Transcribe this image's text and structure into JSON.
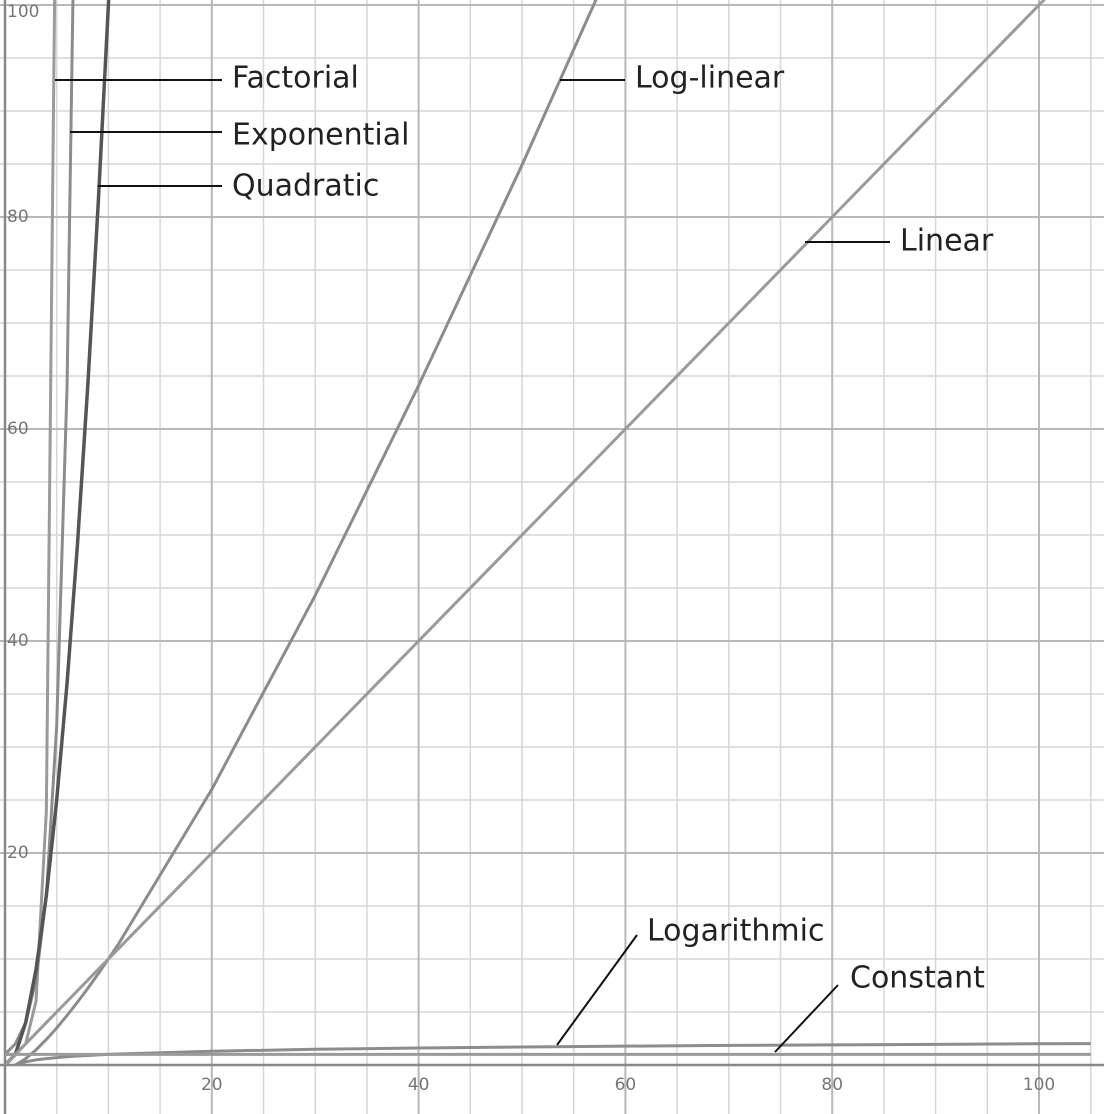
{
  "chart_data": {
    "type": "line",
    "x": [
      0,
      1,
      2,
      3,
      4,
      5,
      6,
      7,
      8,
      9,
      10,
      11,
      20,
      30,
      40,
      50,
      60,
      70,
      80,
      90,
      100,
      105
    ],
    "series": [
      {
        "name": "Factorial",
        "color": "#9a9a9a",
        "values": [
          1,
          1,
          2,
          6,
          24,
          120,
          null,
          null,
          null,
          null,
          null,
          null,
          null,
          null,
          null,
          null,
          null,
          null,
          null,
          null,
          null,
          null
        ]
      },
      {
        "name": "Exponential",
        "color": "#8c8c8c",
        "values": [
          1,
          2,
          4,
          8,
          16,
          32,
          64,
          128,
          null,
          null,
          null,
          null,
          null,
          null,
          null,
          null,
          null,
          null,
          null,
          null,
          null,
          null
        ]
      },
      {
        "name": "Quadratic",
        "color": "#555555",
        "values": [
          0,
          1,
          4,
          9,
          16,
          25,
          36,
          49,
          64,
          81,
          100,
          121,
          null,
          null,
          null,
          null,
          null,
          null,
          null,
          null,
          null,
          null
        ]
      },
      {
        "name": "Log-linear",
        "color": "#8c8c8c",
        "values": [
          null,
          0,
          0.6,
          1.43,
          2.41,
          3.49,
          4.67,
          5.92,
          7.22,
          8.59,
          10,
          11.46,
          26,
          44.3,
          64.1,
          84.9,
          106.7,
          null,
          null,
          null,
          null,
          null
        ]
      },
      {
        "name": "Linear",
        "color": "#9a9a9a",
        "values": [
          0,
          1,
          2,
          3,
          4,
          5,
          6,
          7,
          8,
          9,
          10,
          11,
          20,
          30,
          40,
          50,
          60,
          70,
          80,
          90,
          100,
          105
        ]
      },
      {
        "name": "Logarithmic",
        "color": "#8c8c8c",
        "values": [
          null,
          0,
          0.3,
          0.48,
          0.6,
          0.7,
          0.78,
          0.85,
          0.9,
          0.95,
          1,
          1.04,
          1.3,
          1.48,
          1.6,
          1.7,
          1.78,
          1.85,
          1.9,
          1.95,
          2,
          2.02
        ]
      },
      {
        "name": "Constant",
        "color": "#9a9a9a",
        "values": [
          1,
          1,
          1,
          1,
          1,
          1,
          1,
          1,
          1,
          1,
          1,
          1,
          1,
          1,
          1,
          1,
          1,
          1,
          1,
          1,
          1,
          1
        ]
      }
    ],
    "xlim": [
      0,
      105
    ],
    "ylim": [
      0,
      100
    ],
    "xticks": [
      20,
      40,
      60,
      80,
      100
    ],
    "yticks": [
      20,
      40,
      60,
      80,
      100
    ],
    "grid": true,
    "minor_grid": true
  }
}
